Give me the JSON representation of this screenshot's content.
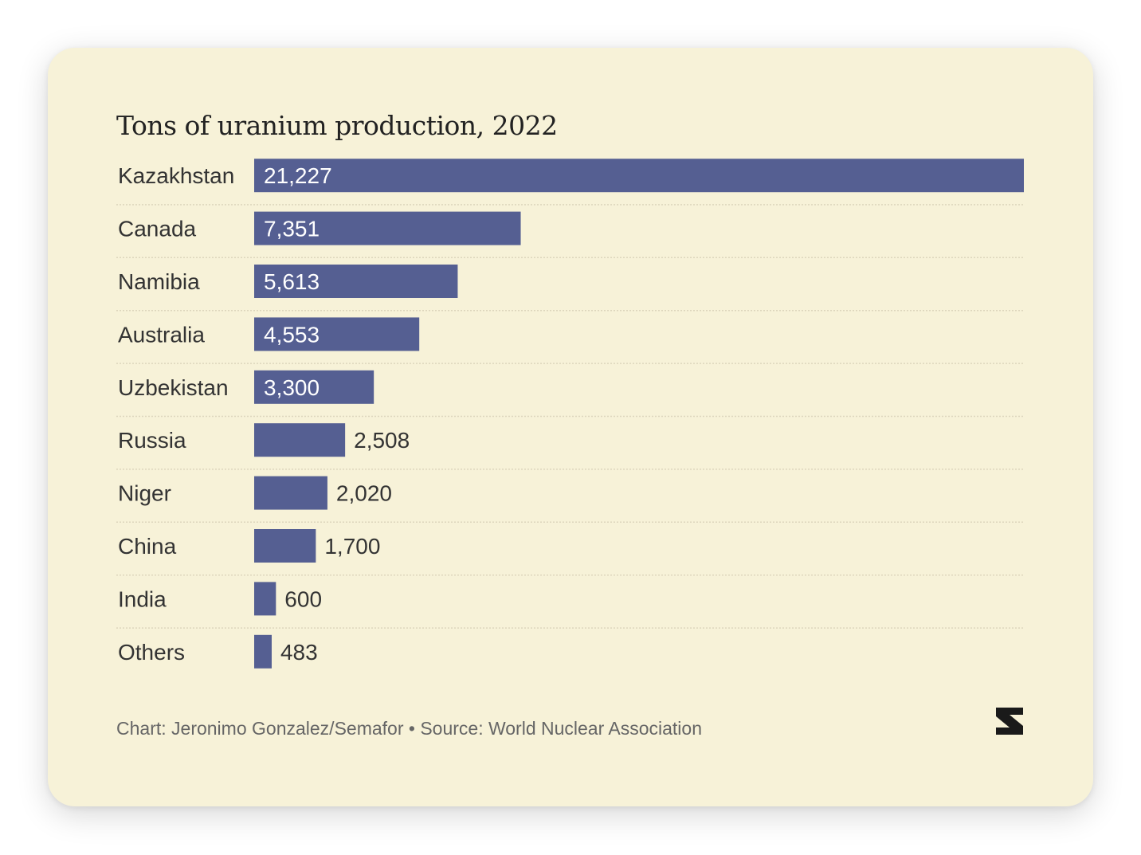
{
  "colors": {
    "background": "#f7f2d8",
    "bar": "#555f92",
    "label_inside": "#ffffff",
    "label_outside": "#333333",
    "category_text": "#333333",
    "gridline": "#ddd6bd"
  },
  "logo": {
    "icon": "semafor-s-logo"
  },
  "footer": {
    "credit": "Chart: Jeronimo Gonzalez/Semafor • Source: World Nuclear Association"
  },
  "chart_data": {
    "type": "bar",
    "orientation": "horizontal",
    "title": "Tons of uranium production, 2022",
    "categories": [
      "Kazakhstan",
      "Canada",
      "Namibia",
      "Australia",
      "Uzbekistan",
      "Russia",
      "Niger",
      "China",
      "India",
      "Others"
    ],
    "values": [
      21227,
      7351,
      5613,
      4553,
      3300,
      2508,
      2020,
      1700,
      600,
      483
    ],
    "value_labels": [
      "21,227",
      "7,351",
      "5,613",
      "4,553",
      "3,300",
      "2,508",
      "2,020",
      "1,700",
      "600",
      "483"
    ],
    "xlabel": "",
    "ylabel": "",
    "xlim": [
      0,
      21227
    ],
    "grid": false,
    "legend": "none"
  }
}
